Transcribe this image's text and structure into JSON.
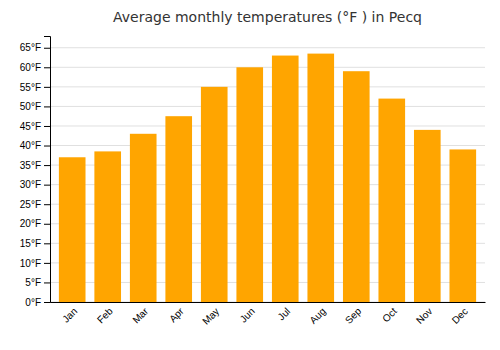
{
  "chart_data": {
    "type": "bar",
    "title": "Average monthly temperatures (°F ) in Pecq",
    "categories": [
      "Jan",
      "Feb",
      "Mar",
      "Apr",
      "May",
      "Jun",
      "Jul",
      "Aug",
      "Sep",
      "Oct",
      "Nov",
      "Dec"
    ],
    "values": [
      37,
      38.5,
      43,
      47.5,
      55,
      60,
      63,
      63.5,
      59,
      52,
      44,
      39
    ],
    "color": "#FFA500",
    "ylim": [
      0,
      68
    ],
    "yticks": [
      {
        "value": 0,
        "label": "0°F"
      },
      {
        "value": 5,
        "label": "5°F"
      },
      {
        "value": 10,
        "label": "10°F"
      },
      {
        "value": 15,
        "label": "15°F"
      },
      {
        "value": 20,
        "label": "20°F"
      },
      {
        "value": 25,
        "label": "25°F"
      },
      {
        "value": 30,
        "label": "30°F"
      },
      {
        "value": 35,
        "label": "35°F"
      },
      {
        "value": 40,
        "label": "40°F"
      },
      {
        "value": 45,
        "label": "45°F"
      },
      {
        "value": 50,
        "label": "50°F"
      },
      {
        "value": 55,
        "label": "55°F"
      },
      {
        "value": 60,
        "label": "60°F"
      },
      {
        "value": 65,
        "label": "65°F"
      }
    ],
    "grid": true
  }
}
